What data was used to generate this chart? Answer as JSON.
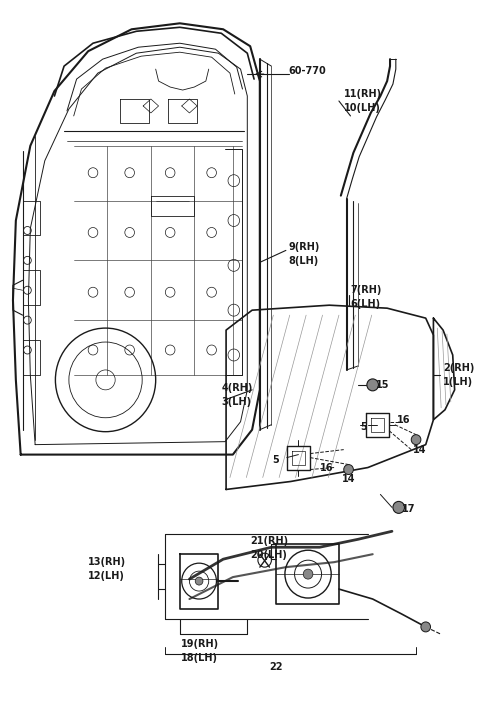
{
  "bg_color": "#ffffff",
  "line_color": "#1a1a1a",
  "figsize": [
    4.8,
    7.04
  ],
  "dpi": 100,
  "xlim": [
    0,
    480
  ],
  "ylim": [
    0,
    704
  ]
}
